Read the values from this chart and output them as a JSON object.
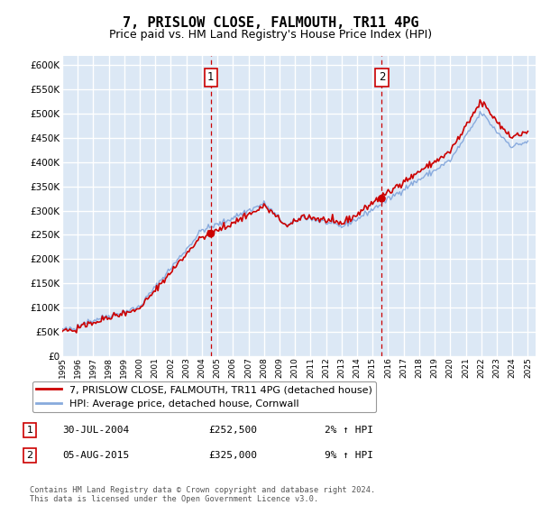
{
  "title": "7, PRISLOW CLOSE, FALMOUTH, TR11 4PG",
  "subtitle": "Price paid vs. HM Land Registry's House Price Index (HPI)",
  "ylim": [
    0,
    620000
  ],
  "ytick_values": [
    0,
    50000,
    100000,
    150000,
    200000,
    250000,
    300000,
    350000,
    400000,
    450000,
    500000,
    550000,
    600000
  ],
  "purchase1_year": 2004.58,
  "purchase1_price": 252500,
  "purchase1_label": "1",
  "purchase1_date": "30-JUL-2004",
  "purchase1_pct": "2%",
  "purchase2_year": 2015.59,
  "purchase2_price": 325000,
  "purchase2_label": "2",
  "purchase2_date": "05-AUG-2015",
  "purchase2_pct": "9%",
  "line_color_price": "#cc0000",
  "line_color_hpi": "#88aadd",
  "background_color": "#dce8f5",
  "grid_color": "#ffffff",
  "legend_label1": "7, PRISLOW CLOSE, FALMOUTH, TR11 4PG (detached house)",
  "legend_label2": "HPI: Average price, detached house, Cornwall",
  "footer": "Contains HM Land Registry data © Crown copyright and database right 2024.\nThis data is licensed under the Open Government Licence v3.0.",
  "title_fontsize": 11,
  "subtitle_fontsize": 9,
  "annotation_box_color": "#cc0000",
  "vline_color": "#cc0000"
}
